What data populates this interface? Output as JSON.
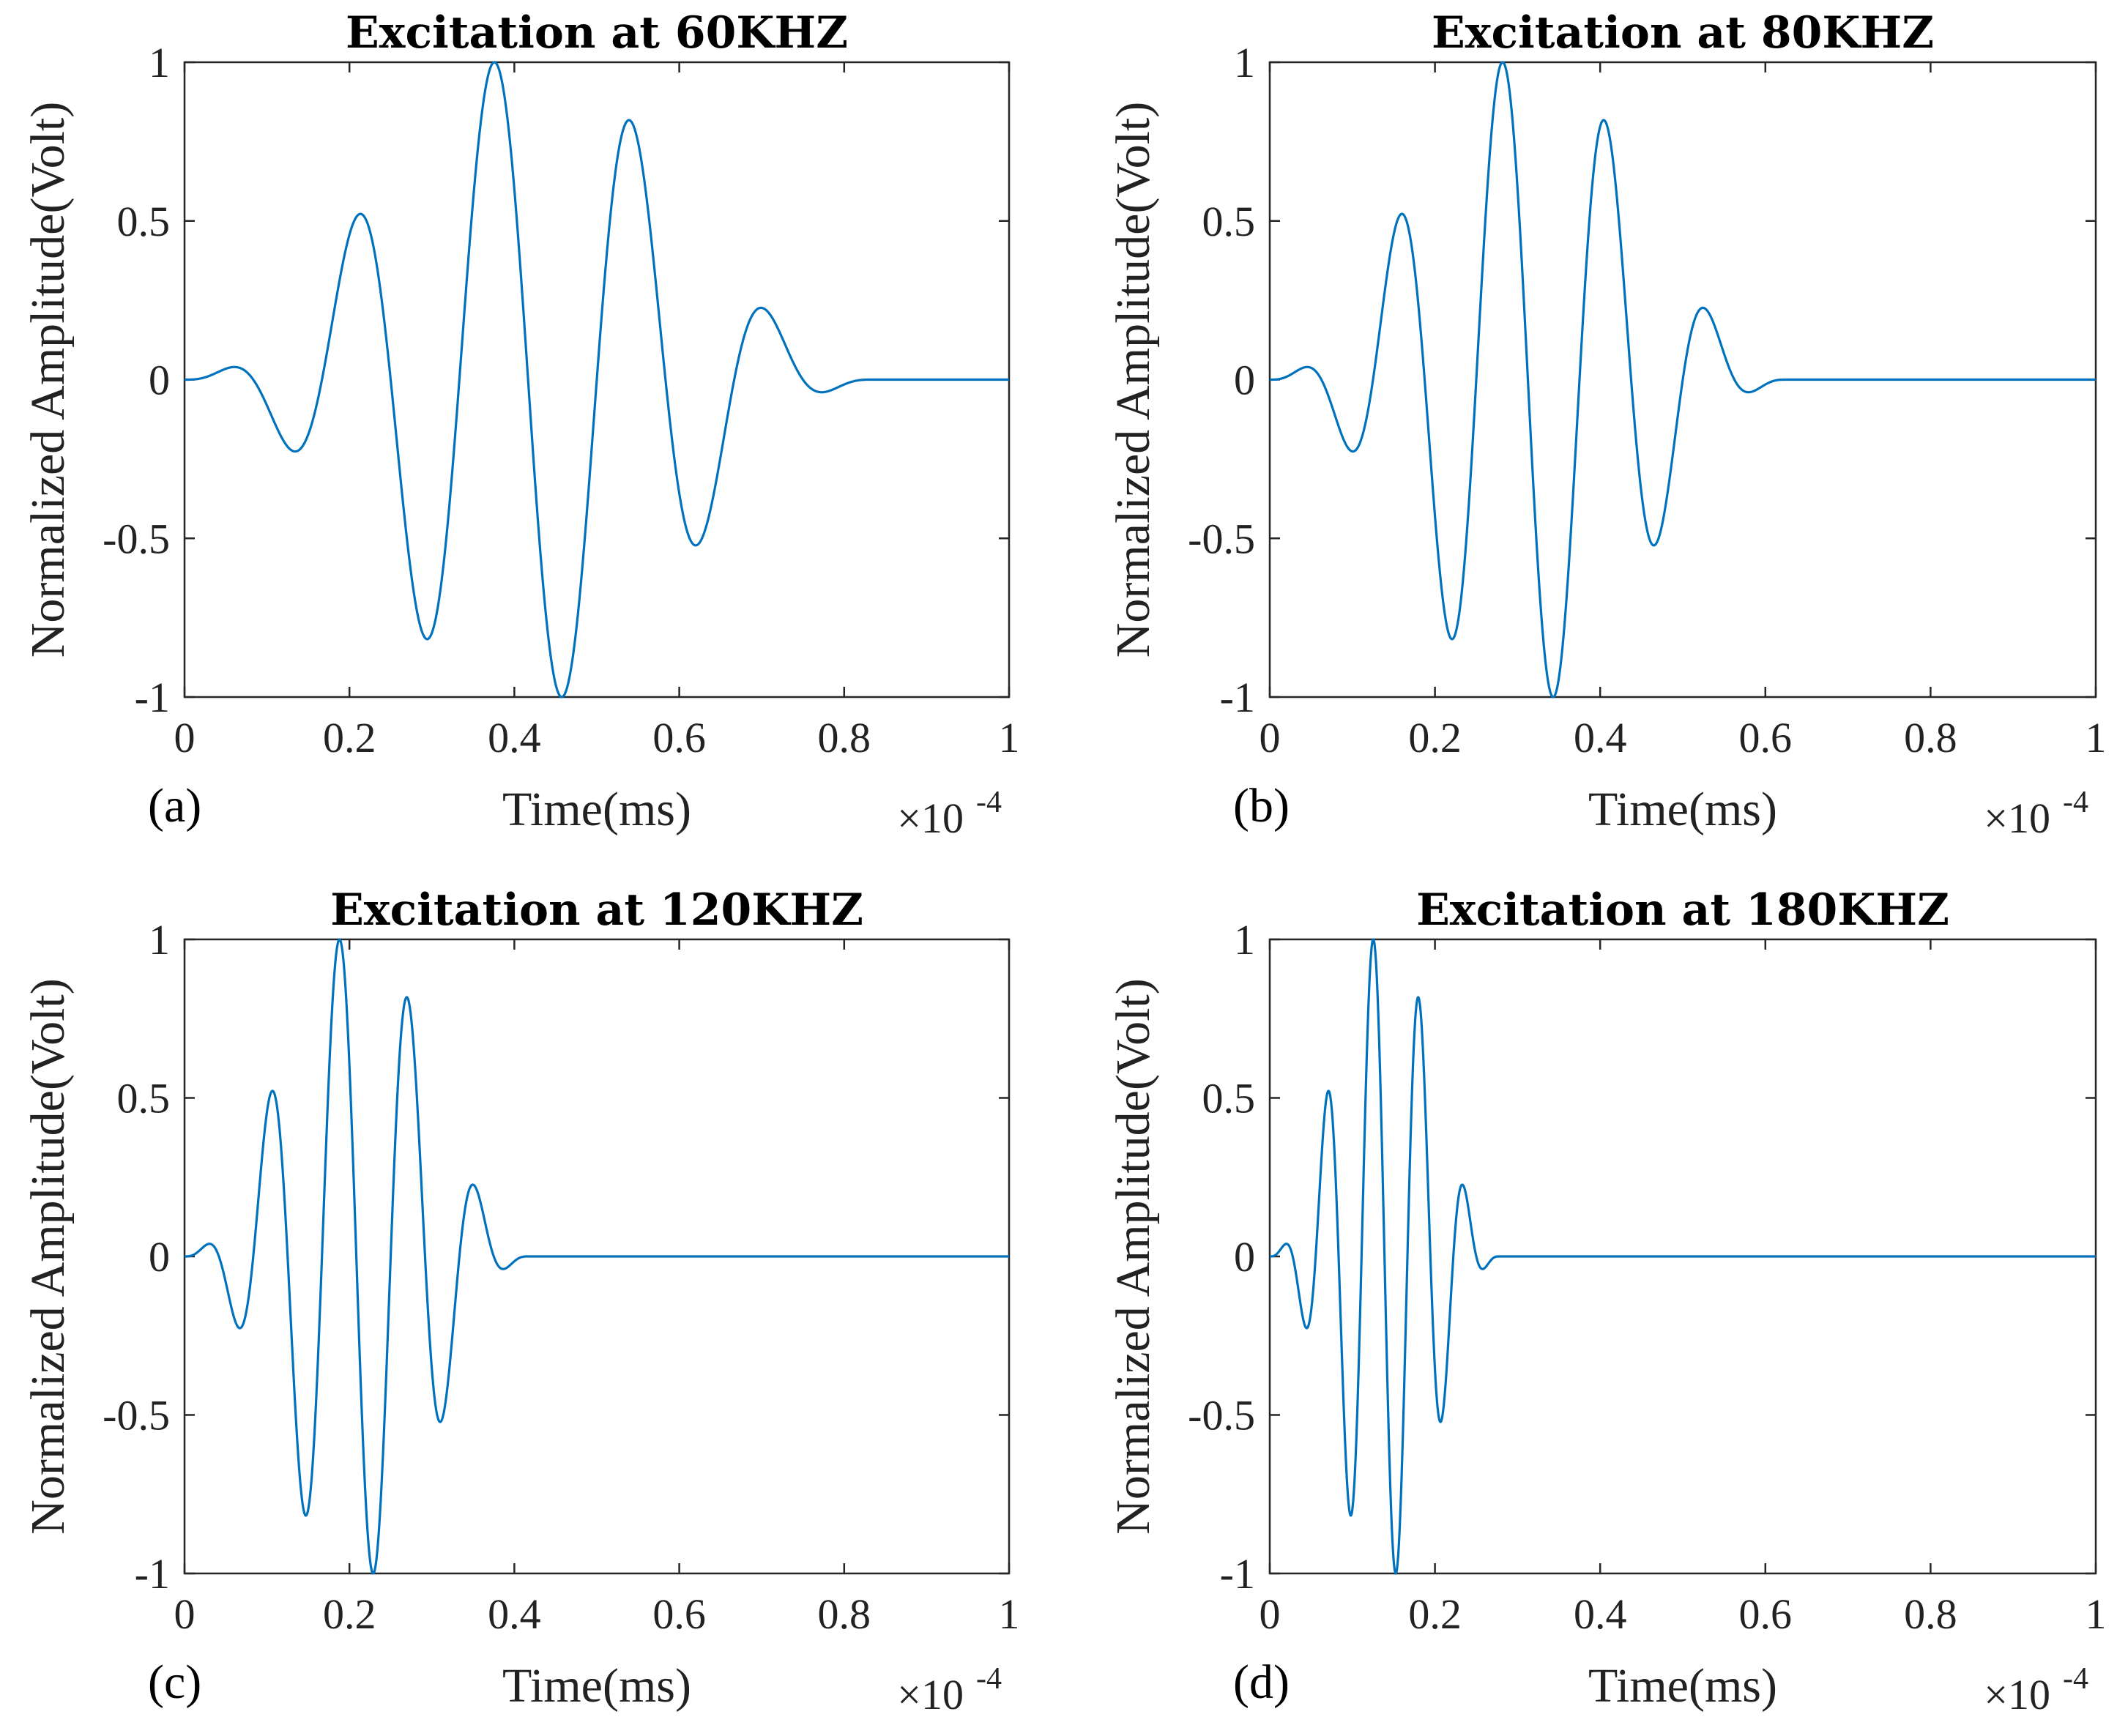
{
  "chart_data": [
    {
      "type": "line",
      "panel": "(a)",
      "title": "Excitation at 60KHZ",
      "xlabel": "Time(ms)",
      "ylabel": "Normalized Amplitude(Volt)",
      "x_multiplier": "×10",
      "x_multiplier_exp": "-4",
      "xlim": [
        0,
        1
      ],
      "ylim": [
        -1,
        1
      ],
      "xticks": [
        "0",
        "0.2",
        "0.4",
        "0.6",
        "0.8",
        "1"
      ],
      "yticks": [
        "-1",
        "-0.5",
        "0",
        "0.5",
        "1"
      ],
      "series": [
        {
          "name": "excitation",
          "color": "#0072bd",
          "frequency_khz": 60,
          "cycles": 5,
          "window": "hanning",
          "burst_end": 0.8333
        }
      ]
    },
    {
      "type": "line",
      "panel": "(b)",
      "title": "Excitation at 80KHZ",
      "xlabel": "Time(ms)",
      "ylabel": "Normalized Amplitude(Volt)",
      "x_multiplier": "×10",
      "x_multiplier_exp": "-4",
      "xlim": [
        0,
        1
      ],
      "ylim": [
        -1,
        1
      ],
      "xticks": [
        "0",
        "0.2",
        "0.4",
        "0.6",
        "0.8",
        "1"
      ],
      "yticks": [
        "-1",
        "-0.5",
        "0",
        "0.5",
        "1"
      ],
      "series": [
        {
          "name": "excitation",
          "color": "#0072bd",
          "frequency_khz": 80,
          "cycles": 5,
          "window": "hanning",
          "burst_end": 0.625
        }
      ]
    },
    {
      "type": "line",
      "panel": "(c)",
      "title": "Excitation at 120KHZ",
      "xlabel": "Time(ms)",
      "ylabel": "Normalized Amplitude(Volt)",
      "x_multiplier": "×10",
      "x_multiplier_exp": "-4",
      "xlim": [
        0,
        1
      ],
      "ylim": [
        -1,
        1
      ],
      "xticks": [
        "0",
        "0.2",
        "0.4",
        "0.6",
        "0.8",
        "1"
      ],
      "yticks": [
        "-1",
        "-0.5",
        "0",
        "0.5",
        "1"
      ],
      "series": [
        {
          "name": "excitation",
          "color": "#0072bd",
          "frequency_khz": 120,
          "cycles": 5,
          "window": "hanning",
          "burst_end": 0.4167
        }
      ]
    },
    {
      "type": "line",
      "panel": "(d)",
      "title": "Excitation at 180KHZ",
      "xlabel": "Time(ms)",
      "ylabel": "Normalized Amplitude(Volt)",
      "x_multiplier": "×10",
      "x_multiplier_exp": "-4",
      "xlim": [
        0,
        1
      ],
      "ylim": [
        -1,
        1
      ],
      "xticks": [
        "0",
        "0.2",
        "0.4",
        "0.6",
        "0.8",
        "1"
      ],
      "yticks": [
        "-1",
        "-0.5",
        "0",
        "0.5",
        "1"
      ],
      "series": [
        {
          "name": "excitation",
          "color": "#0072bd",
          "frequency_khz": 180,
          "cycles": 5,
          "window": "hanning",
          "burst_end": 0.2778
        }
      ]
    }
  ]
}
